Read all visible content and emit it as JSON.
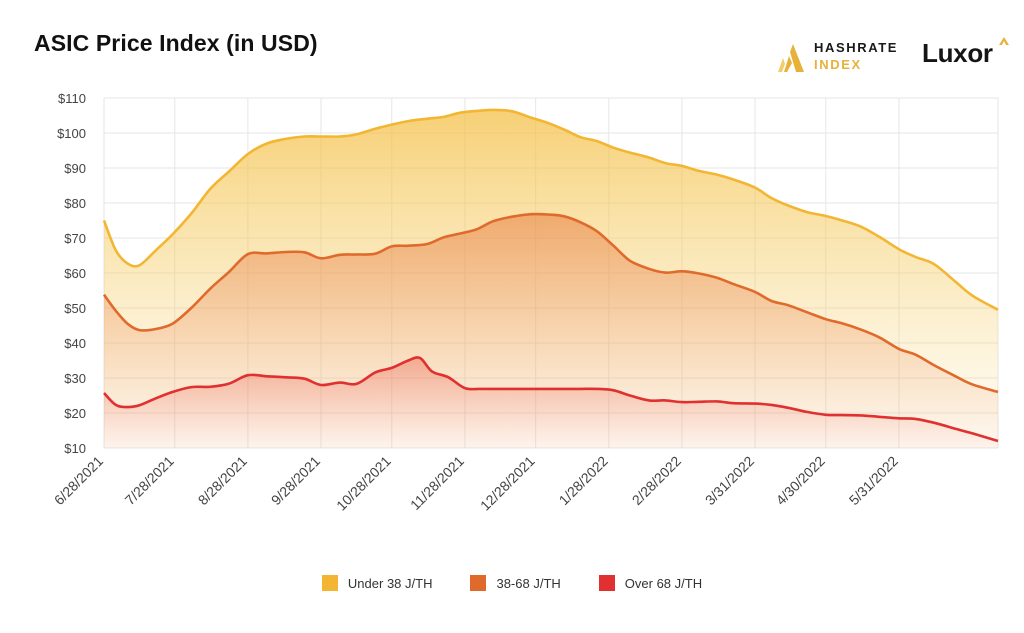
{
  "title": "ASIC Price Index (in USD)",
  "brand": {
    "hashrate_line1": "HASHRATE",
    "hashrate_line2": "INDEX",
    "luxor": "Luxor"
  },
  "colors": {
    "under38": "#f2b632",
    "mid": "#e06a2c",
    "over68": "#e03030",
    "grid": "#e6e6e6",
    "axis_text": "#444444"
  },
  "chart_data": {
    "type": "area",
    "ylim": [
      10,
      110
    ],
    "y_ticks": [
      10,
      20,
      30,
      40,
      50,
      60,
      70,
      80,
      90,
      100,
      110
    ],
    "y_tick_labels": [
      "$10",
      "$20",
      "$30",
      "$40",
      "$50",
      "$60",
      "$70",
      "$80",
      "$90",
      "$100",
      "$110"
    ],
    "x_ticks": [
      "6/28/2021",
      "7/28/2021",
      "8/28/2021",
      "9/28/2021",
      "10/28/2021",
      "11/28/2021",
      "12/28/2021",
      "1/28/2022",
      "2/28/2022",
      "3/31/2022",
      "4/30/2022",
      "5/31/2022"
    ],
    "x_range": [
      "6/28/2021",
      "7/12/2022"
    ],
    "grid": true,
    "legend_position": "bottom",
    "series": [
      {
        "name": "Under 38 J/TH",
        "color": "#f2b632",
        "points": [
          [
            "2021-06-28",
            75
          ],
          [
            "2021-07-03",
            66.5
          ],
          [
            "2021-07-08",
            62.7
          ],
          [
            "2021-07-13",
            62.2
          ],
          [
            "2021-07-20",
            66.5
          ],
          [
            "2021-07-27",
            71
          ],
          [
            "2021-08-04",
            77
          ],
          [
            "2021-08-12",
            84
          ],
          [
            "2021-08-20",
            89
          ],
          [
            "2021-08-28",
            94
          ],
          [
            "2021-09-05",
            97
          ],
          [
            "2021-09-13",
            98.3
          ],
          [
            "2021-09-21",
            99
          ],
          [
            "2021-09-28",
            99
          ],
          [
            "2021-10-06",
            99
          ],
          [
            "2021-10-13",
            99.6
          ],
          [
            "2021-10-21",
            101.2
          ],
          [
            "2021-10-28",
            102.4
          ],
          [
            "2021-11-04",
            103.4
          ],
          [
            "2021-11-12",
            104.1
          ],
          [
            "2021-11-19",
            104.6
          ],
          [
            "2021-11-26",
            105.8
          ],
          [
            "2021-12-03",
            106.3
          ],
          [
            "2021-12-10",
            106.6
          ],
          [
            "2021-12-18",
            106.2
          ],
          [
            "2021-12-26",
            104.4
          ],
          [
            "2022-01-02",
            102.9
          ],
          [
            "2022-01-09",
            101
          ],
          [
            "2022-01-16",
            98.8
          ],
          [
            "2022-01-23",
            97.7
          ],
          [
            "2022-01-30",
            95.8
          ],
          [
            "2022-02-06",
            94.4
          ],
          [
            "2022-02-14",
            93
          ],
          [
            "2022-02-21",
            91.4
          ],
          [
            "2022-02-28",
            90.6
          ],
          [
            "2022-03-07",
            89.2
          ],
          [
            "2022-03-15",
            88.1
          ],
          [
            "2022-03-22",
            86.7
          ],
          [
            "2022-03-31",
            84.4
          ],
          [
            "2022-04-07",
            81.4
          ],
          [
            "2022-04-14",
            79.3
          ],
          [
            "2022-04-22",
            77.4
          ],
          [
            "2022-04-30",
            76.3
          ],
          [
            "2022-05-07",
            75
          ],
          [
            "2022-05-15",
            73.2
          ],
          [
            "2022-05-23",
            70.2
          ],
          [
            "2022-05-31",
            66.8
          ],
          [
            "2022-06-07",
            64.6
          ],
          [
            "2022-06-15",
            62.5
          ],
          [
            "2022-06-24",
            57.5
          ],
          [
            "2022-07-01",
            53.6
          ],
          [
            "2022-07-12",
            49.5
          ]
        ]
      },
      {
        "name": "38-68 J/TH",
        "color": "#e06a2c",
        "points": [
          [
            "2021-06-28",
            53.8
          ],
          [
            "2021-07-03",
            49.2
          ],
          [
            "2021-07-08",
            45.5
          ],
          [
            "2021-07-13",
            43.7
          ],
          [
            "2021-07-20",
            44
          ],
          [
            "2021-07-27",
            45.5
          ],
          [
            "2021-08-04",
            50
          ],
          [
            "2021-08-12",
            55.5
          ],
          [
            "2021-08-20",
            60.3
          ],
          [
            "2021-08-28",
            65.4
          ],
          [
            "2021-09-05",
            65.6
          ],
          [
            "2021-09-13",
            66
          ],
          [
            "2021-09-21",
            65.9
          ],
          [
            "2021-09-28",
            64.2
          ],
          [
            "2021-10-06",
            65.2
          ],
          [
            "2021-10-13",
            65.3
          ],
          [
            "2021-10-21",
            65.5
          ],
          [
            "2021-10-28",
            67.6
          ],
          [
            "2021-11-04",
            67.8
          ],
          [
            "2021-11-12",
            68.3
          ],
          [
            "2021-11-19",
            70.2
          ],
          [
            "2021-11-26",
            71.3
          ],
          [
            "2021-12-03",
            72.5
          ],
          [
            "2021-12-10",
            74.8
          ],
          [
            "2021-12-18",
            76.1
          ],
          [
            "2021-12-26",
            76.8
          ],
          [
            "2022-01-02",
            76.7
          ],
          [
            "2022-01-09",
            76.2
          ],
          [
            "2022-01-16",
            74.5
          ],
          [
            "2022-01-23",
            71.9
          ],
          [
            "2022-01-30",
            67.8
          ],
          [
            "2022-02-06",
            63.5
          ],
          [
            "2022-02-14",
            61.2
          ],
          [
            "2022-02-21",
            60.1
          ],
          [
            "2022-02-28",
            60.5
          ],
          [
            "2022-03-07",
            59.9
          ],
          [
            "2022-03-15",
            58.6
          ],
          [
            "2022-03-22",
            56.8
          ],
          [
            "2022-03-31",
            54.6
          ],
          [
            "2022-04-07",
            52
          ],
          [
            "2022-04-14",
            50.8
          ],
          [
            "2022-04-22",
            48.8
          ],
          [
            "2022-04-30",
            46.8
          ],
          [
            "2022-05-07",
            45.6
          ],
          [
            "2022-05-15",
            43.8
          ],
          [
            "2022-05-23",
            41.5
          ],
          [
            "2022-05-31",
            38.3
          ],
          [
            "2022-06-07",
            36.7
          ],
          [
            "2022-06-15",
            33.6
          ],
          [
            "2022-06-24",
            30.5
          ],
          [
            "2022-07-01",
            28.2
          ],
          [
            "2022-07-12",
            26
          ]
        ]
      },
      {
        "name": "Over 68 J/TH",
        "color": "#e03030",
        "points": [
          [
            "2021-06-28",
            25.7
          ],
          [
            "2021-07-03",
            22.3
          ],
          [
            "2021-07-08",
            21.7
          ],
          [
            "2021-07-13",
            22.2
          ],
          [
            "2021-07-20",
            24.2
          ],
          [
            "2021-07-27",
            26
          ],
          [
            "2021-08-04",
            27.4
          ],
          [
            "2021-08-12",
            27.5
          ],
          [
            "2021-08-20",
            28.4
          ],
          [
            "2021-08-28",
            30.8
          ],
          [
            "2021-09-05",
            30.5
          ],
          [
            "2021-09-13",
            30.2
          ],
          [
            "2021-09-21",
            29.8
          ],
          [
            "2021-09-28",
            28
          ],
          [
            "2021-10-06",
            28.7
          ],
          [
            "2021-10-13",
            28.3
          ],
          [
            "2021-10-21",
            31.6
          ],
          [
            "2021-10-28",
            32.9
          ],
          [
            "2021-11-04",
            35
          ],
          [
            "2021-11-09",
            35.7
          ],
          [
            "2021-11-14",
            31.9
          ],
          [
            "2021-11-21",
            30.2
          ],
          [
            "2021-11-28",
            27.1
          ],
          [
            "2021-12-05",
            26.9
          ],
          [
            "2021-12-15",
            26.9
          ],
          [
            "2021-12-28",
            26.9
          ],
          [
            "2022-01-09",
            26.9
          ],
          [
            "2022-01-16",
            26.9
          ],
          [
            "2022-01-23",
            26.9
          ],
          [
            "2022-01-30",
            26.5
          ],
          [
            "2022-02-06",
            25
          ],
          [
            "2022-02-14",
            23.6
          ],
          [
            "2022-02-21",
            23.6
          ],
          [
            "2022-02-28",
            23.1
          ],
          [
            "2022-03-07",
            23.2
          ],
          [
            "2022-03-15",
            23.3
          ],
          [
            "2022-03-22",
            22.8
          ],
          [
            "2022-03-31",
            22.7
          ],
          [
            "2022-04-07",
            22.3
          ],
          [
            "2022-04-14",
            21.5
          ],
          [
            "2022-04-22",
            20.3
          ],
          [
            "2022-04-30",
            19.5
          ],
          [
            "2022-05-07",
            19.4
          ],
          [
            "2022-05-15",
            19.3
          ],
          [
            "2022-05-23",
            18.9
          ],
          [
            "2022-05-31",
            18.5
          ],
          [
            "2022-06-07",
            18.3
          ],
          [
            "2022-06-15",
            17.2
          ],
          [
            "2022-06-24",
            15.5
          ],
          [
            "2022-07-01",
            14.2
          ],
          [
            "2022-07-12",
            12
          ]
        ]
      }
    ]
  }
}
